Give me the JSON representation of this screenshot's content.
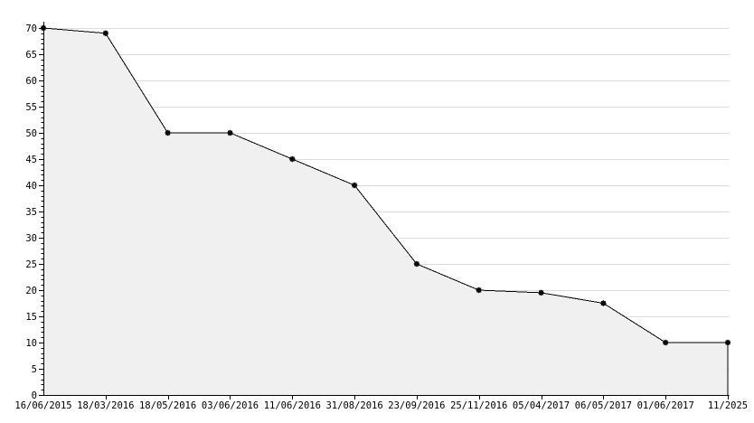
{
  "chart_data": {
    "type": "area",
    "title": "",
    "xlabel": "",
    "ylabel": "",
    "categories": [
      "16/06/2015",
      "18/03/2016",
      "18/05/2016",
      "03/06/2016",
      "11/06/2016",
      "31/08/2016",
      "23/09/2016",
      "25/11/2016",
      "05/04/2017",
      "06/05/2017",
      "01/06/2017",
      "11/2025"
    ],
    "values": [
      70,
      69,
      50,
      50,
      45,
      40,
      25,
      20,
      19.5,
      17.5,
      10,
      10
    ],
    "ylim": [
      0,
      70
    ],
    "y_tick_step": 5,
    "y_minor_tick_step": 1,
    "y_tick_labels": [
      "0",
      "5",
      "10",
      "15",
      "20",
      "25",
      "30",
      "35",
      "40",
      "45",
      "50",
      "55",
      "60",
      "65",
      "70"
    ],
    "grid": "horizontal-only",
    "legend": "none",
    "marker_style": "small-black-square",
    "colors": {
      "background": "#ffffff",
      "line": "#000000",
      "marker": "#0a0a0a",
      "area_fill": "#f0f0f0",
      "gridline": "#dcdcdc",
      "axis": "#000000",
      "tick": "#000000",
      "label_text": "#000000"
    }
  }
}
